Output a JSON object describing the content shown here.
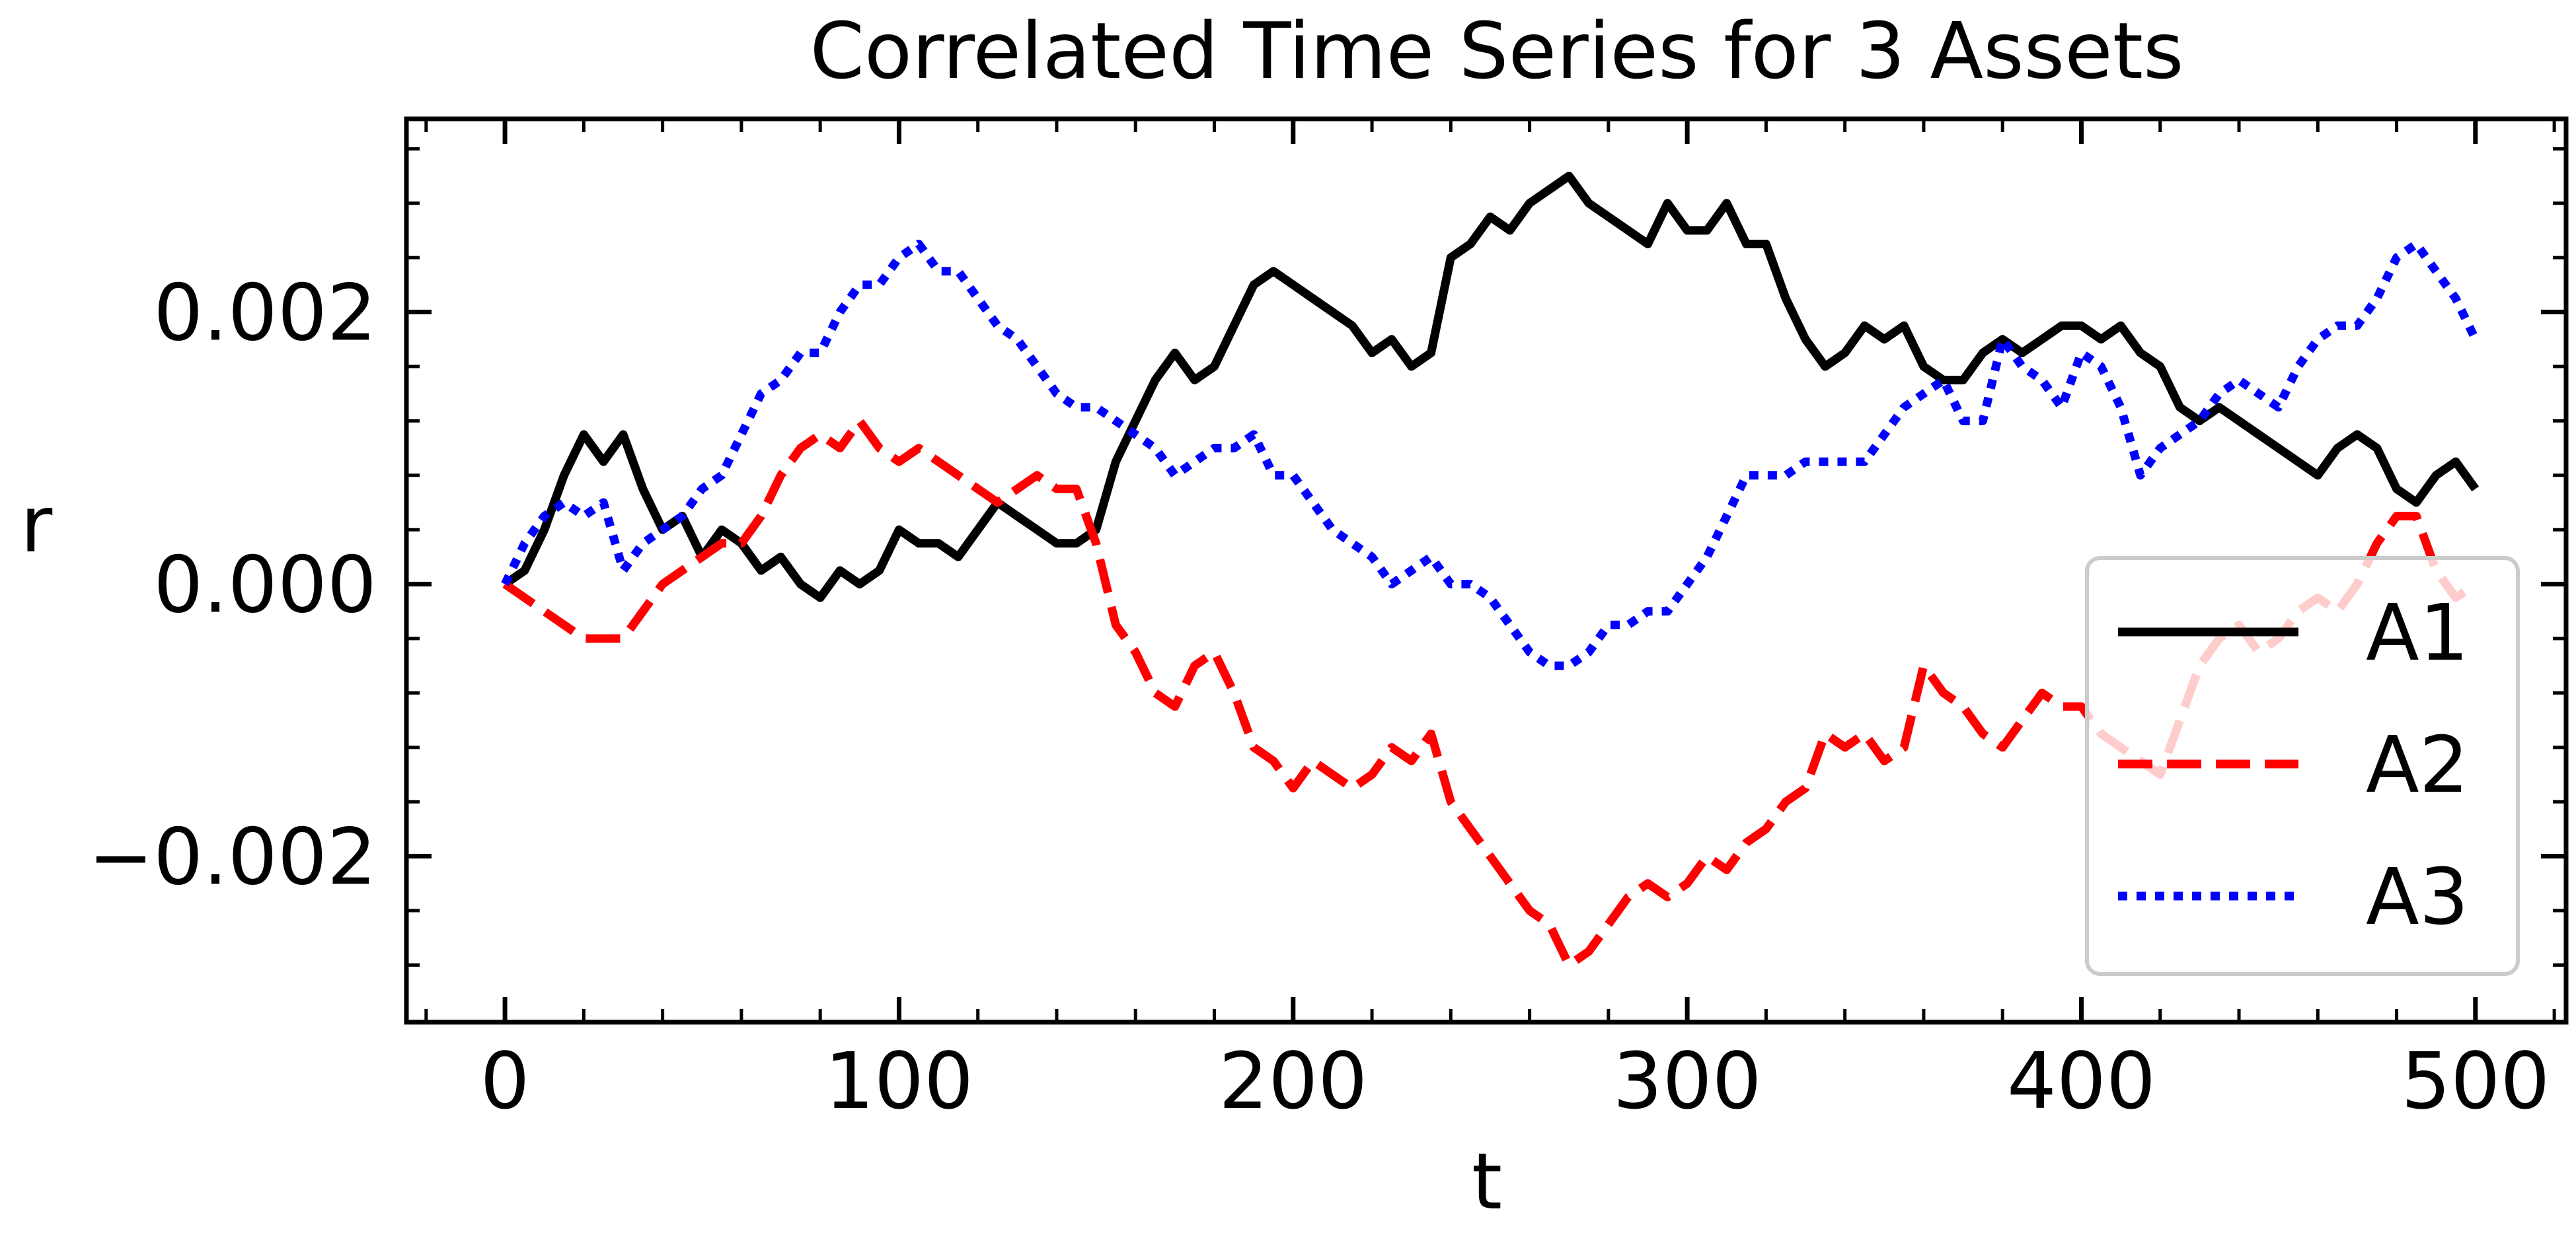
{
  "chart_data": {
    "type": "line",
    "title": "Correlated Time Series for 3 Assets",
    "xlabel": "t",
    "ylabel": "r",
    "xlim": [
      -25,
      523
    ],
    "ylim": [
      -0.00322,
      0.00342
    ],
    "x_ticks": [
      0,
      100,
      200,
      300,
      400,
      500
    ],
    "x_tick_labels": [
      "0",
      "100",
      "200",
      "300",
      "400",
      "500"
    ],
    "y_ticks": [
      -0.002,
      0.0,
      0.002
    ],
    "y_tick_labels": [
      "−0.002",
      "0.000",
      "0.002"
    ],
    "grid": false,
    "legend_position": "lower-right",
    "series": [
      {
        "name": "A1",
        "color": "#000000",
        "style": "solid",
        "points": [
          [
            0,
            0.0
          ],
          [
            5,
            0.0001
          ],
          [
            10,
            0.0004
          ],
          [
            15,
            0.0008
          ],
          [
            20,
            0.0011
          ],
          [
            25,
            0.0009
          ],
          [
            30,
            0.0011
          ],
          [
            35,
            0.0007
          ],
          [
            40,
            0.0004
          ],
          [
            45,
            0.0005
          ],
          [
            50,
            0.0002
          ],
          [
            55,
            0.0004
          ],
          [
            60,
            0.0003
          ],
          [
            65,
            0.0001
          ],
          [
            70,
            0.0002
          ],
          [
            75,
            0.0
          ],
          [
            80,
            -0.0001
          ],
          [
            85,
            0.0001
          ],
          [
            90,
            0.0
          ],
          [
            95,
            0.0001
          ],
          [
            100,
            0.0004
          ],
          [
            105,
            0.0003
          ],
          [
            110,
            0.0003
          ],
          [
            115,
            0.0002
          ],
          [
            120,
            0.0004
          ],
          [
            125,
            0.0006
          ],
          [
            130,
            0.0005
          ],
          [
            135,
            0.0004
          ],
          [
            140,
            0.0003
          ],
          [
            145,
            0.0003
          ],
          [
            150,
            0.0004
          ],
          [
            155,
            0.0009
          ],
          [
            160,
            0.0012
          ],
          [
            165,
            0.0015
          ],
          [
            170,
            0.0017
          ],
          [
            175,
            0.0015
          ],
          [
            180,
            0.0016
          ],
          [
            185,
            0.0019
          ],
          [
            190,
            0.0022
          ],
          [
            195,
            0.0023
          ],
          [
            200,
            0.0022
          ],
          [
            205,
            0.0021
          ],
          [
            210,
            0.002
          ],
          [
            215,
            0.0019
          ],
          [
            220,
            0.0017
          ],
          [
            225,
            0.0018
          ],
          [
            230,
            0.0016
          ],
          [
            235,
            0.0017
          ],
          [
            240,
            0.0024
          ],
          [
            245,
            0.0025
          ],
          [
            250,
            0.0027
          ],
          [
            255,
            0.0026
          ],
          [
            260,
            0.0028
          ],
          [
            265,
            0.0029
          ],
          [
            270,
            0.003
          ],
          [
            275,
            0.0028
          ],
          [
            280,
            0.0027
          ],
          [
            285,
            0.0026
          ],
          [
            290,
            0.0025
          ],
          [
            295,
            0.0028
          ],
          [
            300,
            0.0026
          ],
          [
            305,
            0.0026
          ],
          [
            310,
            0.0028
          ],
          [
            315,
            0.0025
          ],
          [
            320,
            0.0025
          ],
          [
            325,
            0.0021
          ],
          [
            330,
            0.0018
          ],
          [
            335,
            0.0016
          ],
          [
            340,
            0.0017
          ],
          [
            345,
            0.0019
          ],
          [
            350,
            0.0018
          ],
          [
            355,
            0.0019
          ],
          [
            360,
            0.0016
          ],
          [
            365,
            0.0015
          ],
          [
            370,
            0.0015
          ],
          [
            375,
            0.0017
          ],
          [
            380,
            0.0018
          ],
          [
            385,
            0.0017
          ],
          [
            390,
            0.0018
          ],
          [
            395,
            0.0019
          ],
          [
            400,
            0.0019
          ],
          [
            405,
            0.0018
          ],
          [
            410,
            0.0019
          ],
          [
            415,
            0.0017
          ],
          [
            420,
            0.0016
          ],
          [
            425,
            0.0013
          ],
          [
            430,
            0.0012
          ],
          [
            435,
            0.0013
          ],
          [
            440,
            0.0012
          ],
          [
            445,
            0.0011
          ],
          [
            450,
            0.001
          ],
          [
            455,
            0.0009
          ],
          [
            460,
            0.0008
          ],
          [
            465,
            0.001
          ],
          [
            470,
            0.0011
          ],
          [
            475,
            0.001
          ],
          [
            480,
            0.0007
          ],
          [
            485,
            0.0006
          ],
          [
            490,
            0.0008
          ],
          [
            495,
            0.0009
          ],
          [
            500,
            0.0007
          ]
        ]
      },
      {
        "name": "A2",
        "color": "#ff0000",
        "style": "dashed",
        "points": [
          [
            0,
            0.0
          ],
          [
            5,
            -0.0001
          ],
          [
            10,
            -0.0002
          ],
          [
            15,
            -0.0003
          ],
          [
            20,
            -0.0004
          ],
          [
            25,
            -0.0004
          ],
          [
            30,
            -0.0004
          ],
          [
            35,
            -0.0002
          ],
          [
            40,
            0.0
          ],
          [
            45,
            0.0001
          ],
          [
            50,
            0.0002
          ],
          [
            55,
            0.0003
          ],
          [
            60,
            0.0003
          ],
          [
            65,
            0.0005
          ],
          [
            70,
            0.0008
          ],
          [
            75,
            0.001
          ],
          [
            80,
            0.0011
          ],
          [
            85,
            0.001
          ],
          [
            90,
            0.0012
          ],
          [
            95,
            0.001
          ],
          [
            100,
            0.0009
          ],
          [
            105,
            0.001
          ],
          [
            110,
            0.0009
          ],
          [
            115,
            0.0008
          ],
          [
            120,
            0.0007
          ],
          [
            125,
            0.0006
          ],
          [
            130,
            0.0007
          ],
          [
            135,
            0.0008
          ],
          [
            140,
            0.0007
          ],
          [
            145,
            0.0007
          ],
          [
            150,
            0.0003
          ],
          [
            155,
            -0.0003
          ],
          [
            160,
            -0.0005
          ],
          [
            165,
            -0.0008
          ],
          [
            170,
            -0.0009
          ],
          [
            175,
            -0.0006
          ],
          [
            180,
            -0.0005
          ],
          [
            185,
            -0.0008
          ],
          [
            190,
            -0.0012
          ],
          [
            195,
            -0.0013
          ],
          [
            200,
            -0.0015
          ],
          [
            205,
            -0.0013
          ],
          [
            210,
            -0.0014
          ],
          [
            215,
            -0.0015
          ],
          [
            220,
            -0.0014
          ],
          [
            225,
            -0.0012
          ],
          [
            230,
            -0.0013
          ],
          [
            235,
            -0.0011
          ],
          [
            240,
            -0.0016
          ],
          [
            245,
            -0.0018
          ],
          [
            250,
            -0.002
          ],
          [
            255,
            -0.0022
          ],
          [
            260,
            -0.0024
          ],
          [
            265,
            -0.0025
          ],
          [
            270,
            -0.0028
          ],
          [
            275,
            -0.0027
          ],
          [
            280,
            -0.0025
          ],
          [
            285,
            -0.0023
          ],
          [
            290,
            -0.0022
          ],
          [
            295,
            -0.0023
          ],
          [
            300,
            -0.0022
          ],
          [
            305,
            -0.002
          ],
          [
            310,
            -0.0021
          ],
          [
            315,
            -0.0019
          ],
          [
            320,
            -0.0018
          ],
          [
            325,
            -0.0016
          ],
          [
            330,
            -0.0015
          ],
          [
            335,
            -0.0011
          ],
          [
            340,
            -0.0012
          ],
          [
            345,
            -0.0011
          ],
          [
            350,
            -0.0013
          ],
          [
            355,
            -0.0012
          ],
          [
            360,
            -0.0006
          ],
          [
            365,
            -0.0008
          ],
          [
            370,
            -0.0009
          ],
          [
            375,
            -0.0011
          ],
          [
            380,
            -0.0012
          ],
          [
            385,
            -0.001
          ],
          [
            390,
            -0.0008
          ],
          [
            395,
            -0.0009
          ],
          [
            400,
            -0.0009
          ],
          [
            405,
            -0.0011
          ],
          [
            410,
            -0.0012
          ],
          [
            415,
            -0.0013
          ],
          [
            420,
            -0.0014
          ],
          [
            425,
            -0.001
          ],
          [
            430,
            -0.0006
          ],
          [
            435,
            -0.0004
          ],
          [
            440,
            -0.0003
          ],
          [
            445,
            -0.0005
          ],
          [
            450,
            -0.0004
          ],
          [
            455,
            -0.0002
          ],
          [
            460,
            -0.0001
          ],
          [
            465,
            -0.0002
          ],
          [
            470,
            0.0
          ],
          [
            475,
            0.0003
          ],
          [
            480,
            0.0005
          ],
          [
            485,
            0.0005
          ],
          [
            490,
            0.0001
          ],
          [
            495,
            -0.0001
          ],
          [
            500,
            0.0
          ]
        ]
      },
      {
        "name": "A3",
        "color": "#0000ff",
        "style": "dotted",
        "points": [
          [
            0,
            0.0
          ],
          [
            5,
            0.0003
          ],
          [
            10,
            0.0005
          ],
          [
            15,
            0.0006
          ],
          [
            20,
            0.0005
          ],
          [
            25,
            0.0006
          ],
          [
            30,
            0.0001
          ],
          [
            35,
            0.0003
          ],
          [
            40,
            0.0004
          ],
          [
            45,
            0.0005
          ],
          [
            50,
            0.0007
          ],
          [
            55,
            0.0008
          ],
          [
            60,
            0.0011
          ],
          [
            65,
            0.0014
          ],
          [
            70,
            0.0015
          ],
          [
            75,
            0.0017
          ],
          [
            80,
            0.0017
          ],
          [
            85,
            0.002
          ],
          [
            90,
            0.0022
          ],
          [
            95,
            0.0022
          ],
          [
            100,
            0.0024
          ],
          [
            105,
            0.0025
          ],
          [
            110,
            0.0023
          ],
          [
            115,
            0.0023
          ],
          [
            120,
            0.0021
          ],
          [
            125,
            0.0019
          ],
          [
            130,
            0.0018
          ],
          [
            135,
            0.0016
          ],
          [
            140,
            0.0014
          ],
          [
            145,
            0.0013
          ],
          [
            150,
            0.0013
          ],
          [
            155,
            0.0012
          ],
          [
            160,
            0.0011
          ],
          [
            165,
            0.001
          ],
          [
            170,
            0.0008
          ],
          [
            175,
            0.0009
          ],
          [
            180,
            0.001
          ],
          [
            185,
            0.001
          ],
          [
            190,
            0.0011
          ],
          [
            195,
            0.0008
          ],
          [
            200,
            0.0008
          ],
          [
            205,
            0.0006
          ],
          [
            210,
            0.0004
          ],
          [
            215,
            0.0003
          ],
          [
            220,
            0.0002
          ],
          [
            225,
            0.0
          ],
          [
            230,
            0.0001
          ],
          [
            235,
            0.0002
          ],
          [
            240,
            0.0
          ],
          [
            245,
            0.0
          ],
          [
            250,
            -0.0001
          ],
          [
            255,
            -0.0003
          ],
          [
            260,
            -0.0005
          ],
          [
            265,
            -0.0006
          ],
          [
            270,
            -0.0006
          ],
          [
            275,
            -0.0005
          ],
          [
            280,
            -0.0003
          ],
          [
            285,
            -0.0003
          ],
          [
            290,
            -0.0002
          ],
          [
            295,
            -0.0002
          ],
          [
            300,
            0.0
          ],
          [
            305,
            0.0002
          ],
          [
            310,
            0.0005
          ],
          [
            315,
            0.0008
          ],
          [
            320,
            0.0008
          ],
          [
            325,
            0.0008
          ],
          [
            330,
            0.0009
          ],
          [
            335,
            0.0009
          ],
          [
            340,
            0.0009
          ],
          [
            345,
            0.0009
          ],
          [
            350,
            0.0011
          ],
          [
            355,
            0.0013
          ],
          [
            360,
            0.0014
          ],
          [
            365,
            0.0015
          ],
          [
            370,
            0.0012
          ],
          [
            375,
            0.0012
          ],
          [
            380,
            0.0018
          ],
          [
            385,
            0.0016
          ],
          [
            390,
            0.0015
          ],
          [
            395,
            0.0013
          ],
          [
            400,
            0.0017
          ],
          [
            405,
            0.0016
          ],
          [
            410,
            0.0013
          ],
          [
            415,
            0.0008
          ],
          [
            420,
            0.001
          ],
          [
            425,
            0.0011
          ],
          [
            430,
            0.0012
          ],
          [
            435,
            0.0014
          ],
          [
            440,
            0.0015
          ],
          [
            445,
            0.0014
          ],
          [
            450,
            0.0013
          ],
          [
            455,
            0.0016
          ],
          [
            460,
            0.0018
          ],
          [
            465,
            0.0019
          ],
          [
            470,
            0.0019
          ],
          [
            475,
            0.0021
          ],
          [
            480,
            0.0024
          ],
          [
            485,
            0.0025
          ],
          [
            490,
            0.0023
          ],
          [
            495,
            0.0021
          ],
          [
            500,
            0.0018
          ]
        ]
      }
    ]
  }
}
